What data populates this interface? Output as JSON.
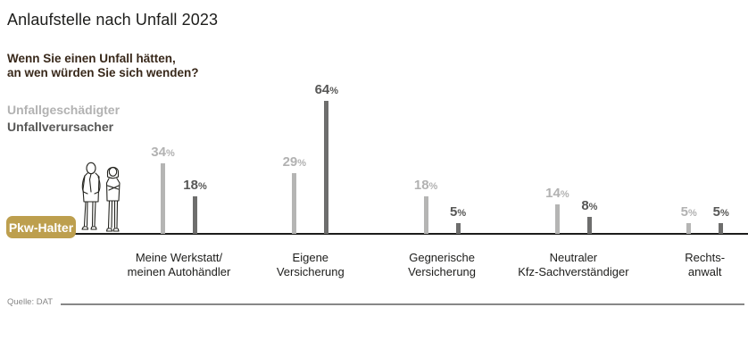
{
  "title": "Anlaufstelle nach Unfall 2023",
  "question": "Wenn Sie einen Unfall hätten,\nan wen würden Sie sich wenden?",
  "legend": {
    "items": [
      {
        "label": "Unfallgeschädigter",
        "color": "#b2b2b2"
      },
      {
        "label": "Unfallverursacher",
        "color": "#575756"
      }
    ]
  },
  "group_badge": {
    "label": "Pkw-Halter",
    "background": "#bd9f4e",
    "text_color": "#ffffff"
  },
  "source": "Quelle: DAT",
  "chart_data": {
    "type": "bar",
    "title": "Anlaufstelle nach Unfall 2023",
    "subtitle": "Wenn Sie einen Unfall hätten, an wen würden Sie sich wenden?",
    "categories": [
      "Meine Werkstatt/\nmeinen Autohändler",
      "Eigene\nVersicherung",
      "Gegnerische\nVersicherung",
      "Neutraler\nKfz-Sachverständiger",
      "Rechts-\nanwalt"
    ],
    "series": [
      {
        "name": "Unfallgeschädigter",
        "color": "#b5b5b4",
        "values": [
          34,
          29,
          18,
          14,
          5
        ]
      },
      {
        "name": "Unfallverursacher",
        "color": "#6e6e6d",
        "values": [
          18,
          64,
          5,
          8,
          5
        ]
      }
    ],
    "unit": "%",
    "ylim": [
      0,
      70
    ],
    "grid": false,
    "legend_position": "left",
    "baseline_axis": true,
    "source": "Quelle: DAT"
  }
}
